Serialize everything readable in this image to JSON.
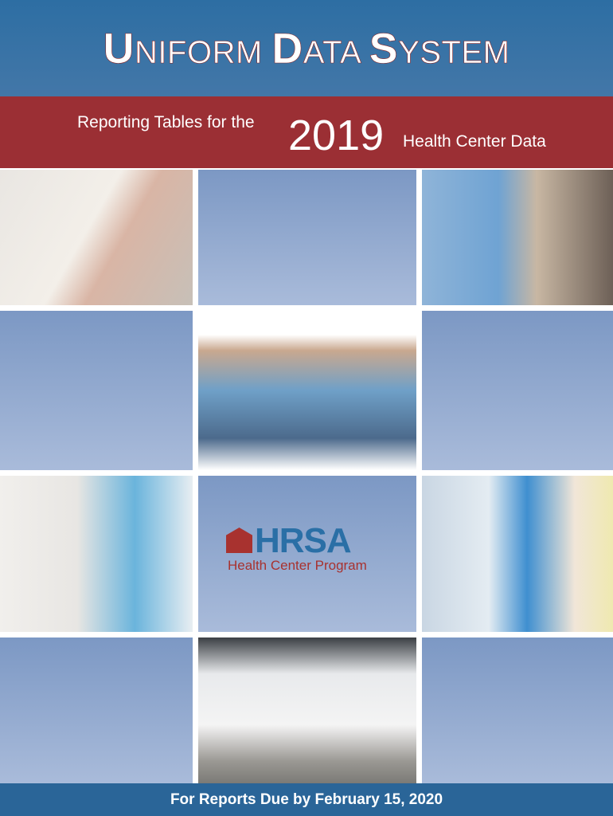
{
  "header": {
    "title_parts": [
      {
        "initial": "U",
        "rest": "NIFORM "
      },
      {
        "initial": "D",
        "rest": "ATA "
      },
      {
        "initial": "S",
        "rest": "YSTEM"
      }
    ]
  },
  "banner": {
    "prefix": "Reporting Tables for the",
    "year": "2019",
    "suffix": "Health Center Data"
  },
  "logo": {
    "name": "HRSA",
    "tagline": "Health Center Program"
  },
  "footer": {
    "text": "For Reports Due by February 15, 2020"
  },
  "colors": {
    "blue": "#2d6ea3",
    "red": "#9b2f34",
    "tile": "#8fa7cf"
  }
}
